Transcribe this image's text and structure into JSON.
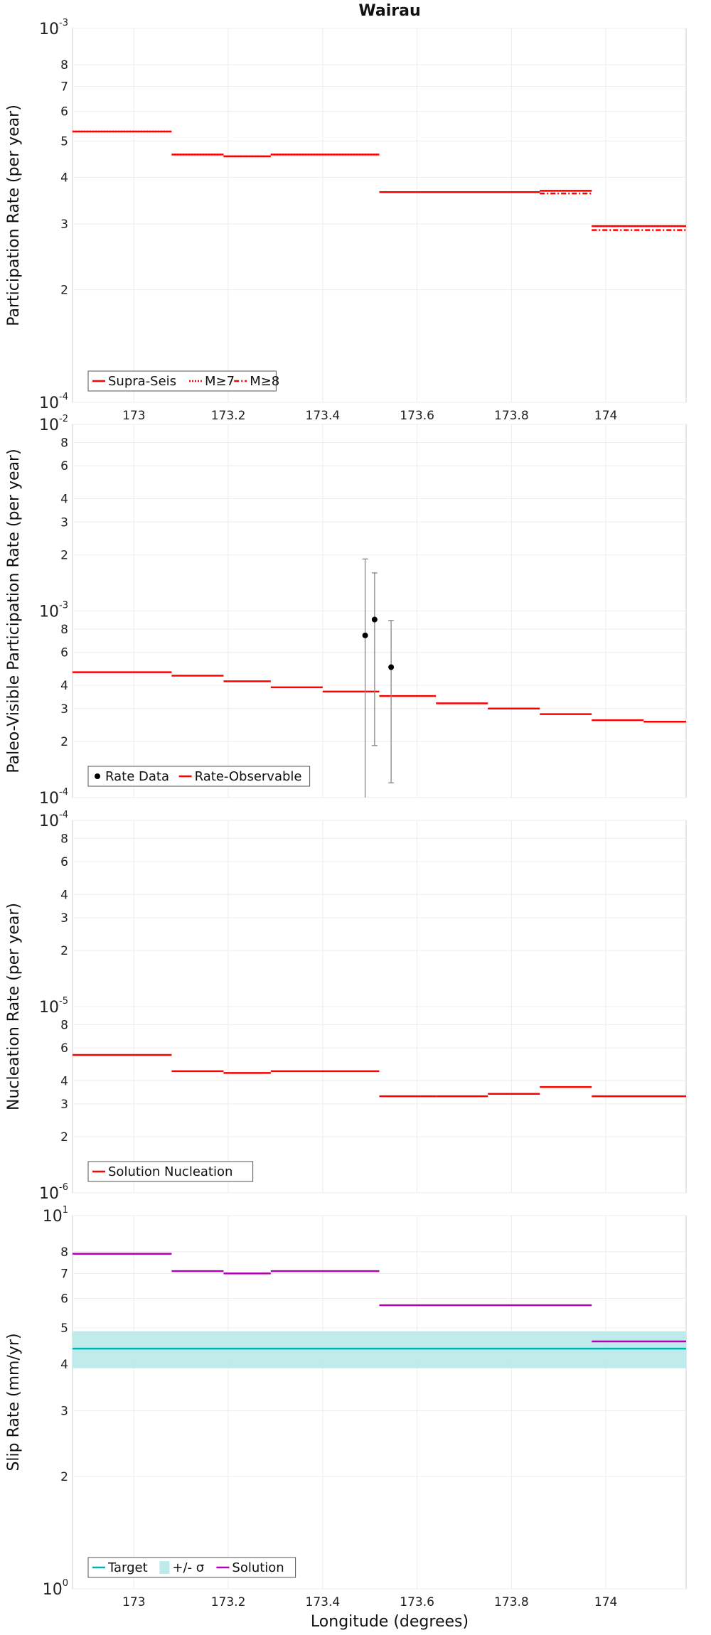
{
  "title": "Wairau",
  "xlabel": "Longitude (degrees)",
  "colors": {
    "red": "#ff0000",
    "black": "#000000",
    "gray": "#888888",
    "cyan": "#00b3b3",
    "cyan_band": "#bdeaea",
    "magenta": "#b300b3"
  },
  "chart_data": [
    {
      "type": "line",
      "ylabel": "Participation Rate (per year)",
      "yscale": "log",
      "xlim": [
        172.87,
        174.17
      ],
      "ylim": [
        0.0001,
        0.001
      ],
      "xticks": [
        173,
        173.2,
        173.4,
        173.6,
        173.8,
        174
      ],
      "xtick_labels": [
        "173",
        "173.2",
        "173.4",
        "173.6",
        "173.8",
        "174"
      ],
      "yticks": [
        {
          "v": 0.001,
          "b": "10",
          "e": "-3"
        },
        {
          "v": 0.0008,
          "t": "8"
        },
        {
          "v": 0.0007,
          "t": "7"
        },
        {
          "v": 0.0006,
          "t": "6"
        },
        {
          "v": 0.0005,
          "t": "5"
        },
        {
          "v": 0.0004,
          "t": "4"
        },
        {
          "v": 0.0003,
          "t": "3"
        },
        {
          "v": 0.0002,
          "t": "2"
        },
        {
          "v": 0.0001,
          "b": "10",
          "e": "-4"
        }
      ],
      "grid": true,
      "legend": {
        "placement": "bottom-left",
        "items": [
          {
            "label": "Supra-Seis",
            "style": "solid",
            "color": "#ff0000"
          },
          {
            "label": "M≥7",
            "style": "dotted",
            "color": "#ff0000"
          },
          {
            "label": "M≥8",
            "style": "dashdot",
            "color": "#ff0000"
          }
        ]
      },
      "series": [
        {
          "name": "Supra-Seis",
          "style": "solid",
          "color": "#ff0000",
          "segments": [
            [
              172.87,
              173.08,
              0.00053
            ],
            [
              173.08,
              173.19,
              0.00046
            ],
            [
              173.19,
              173.29,
              0.000455
            ],
            [
              173.29,
              173.52,
              0.00046
            ],
            [
              173.52,
              173.86,
              0.000365
            ],
            [
              173.86,
              173.97,
              0.000368
            ],
            [
              173.97,
              174.17,
              0.000296
            ]
          ]
        },
        {
          "name": "M≥7",
          "style": "dotted",
          "color": "#ff0000",
          "segments": [
            [
              172.87,
              173.08,
              0.00053
            ],
            [
              173.08,
              173.19,
              0.00046
            ],
            [
              173.19,
              173.29,
              0.000455
            ],
            [
              173.29,
              173.52,
              0.00046
            ],
            [
              173.52,
              173.86,
              0.000365
            ],
            [
              173.86,
              173.97,
              0.000368
            ],
            [
              173.97,
              174.17,
              0.000296
            ]
          ]
        },
        {
          "name": "M≥8",
          "style": "dashdot",
          "color": "#ff0000",
          "segments": [
            [
              173.86,
              173.97,
              0.000362
            ],
            [
              173.97,
              174.17,
              0.000289
            ]
          ]
        }
      ]
    },
    {
      "type": "line",
      "ylabel": "Paleo-Visible Participation Rate (per year)",
      "yscale": "log",
      "xlim": [
        172.87,
        174.17
      ],
      "ylim": [
        0.0001,
        0.01
      ],
      "xticks": [
        173,
        173.2,
        173.4,
        173.6,
        173.8,
        174
      ],
      "xtick_labels": [],
      "yticks": [
        {
          "v": 0.01,
          "b": "10",
          "e": "-2"
        },
        {
          "v": 0.008,
          "t": "8"
        },
        {
          "v": 0.006,
          "t": "6"
        },
        {
          "v": 0.004,
          "t": "4"
        },
        {
          "v": 0.003,
          "t": "3"
        },
        {
          "v": 0.002,
          "t": "2"
        },
        {
          "v": 0.001,
          "b": "10",
          "e": "-3"
        },
        {
          "v": 0.0008,
          "t": "8"
        },
        {
          "v": 0.0006,
          "t": "6"
        },
        {
          "v": 0.0004,
          "t": "4"
        },
        {
          "v": 0.0003,
          "t": "3"
        },
        {
          "v": 0.0002,
          "t": "2"
        },
        {
          "v": 0.0001,
          "b": "10",
          "e": "-4"
        }
      ],
      "grid": true,
      "legend": {
        "placement": "bottom-left",
        "items": [
          {
            "label": "Rate Data",
            "style": "marker",
            "color": "#000000"
          },
          {
            "label": "Rate-Observable",
            "style": "solid",
            "color": "#ff0000"
          }
        ]
      },
      "series": [
        {
          "name": "Rate-Observable",
          "style": "solid",
          "color": "#ff0000",
          "segments": [
            [
              172.87,
              173.08,
              0.00047
            ],
            [
              173.08,
              173.19,
              0.00045
            ],
            [
              173.19,
              173.29,
              0.00042
            ],
            [
              173.29,
              173.4,
              0.00039
            ],
            [
              173.4,
              173.52,
              0.00037
            ],
            [
              173.52,
              173.64,
              0.00035
            ],
            [
              173.64,
              173.75,
              0.00032
            ],
            [
              173.75,
              173.86,
              0.0003
            ],
            [
              173.86,
              173.97,
              0.00028
            ],
            [
              173.97,
              174.08,
              0.00026
            ],
            [
              174.08,
              174.17,
              0.000255
            ],
            [
              174.17,
              174.17,
              0.000252
            ]
          ]
        },
        {
          "name": "Rate Data",
          "style": "marker",
          "color": "#000000",
          "points": [
            {
              "x": 173.49,
              "y": 0.00074,
              "lo": 0.0001,
              "hi": 0.0019
            },
            {
              "x": 173.51,
              "y": 0.0009,
              "lo": 0.00019,
              "hi": 0.0016
            },
            {
              "x": 173.545,
              "y": 0.0005,
              "lo": 0.00012,
              "hi": 0.00089
            }
          ]
        }
      ]
    },
    {
      "type": "line",
      "ylabel": "Nucleation Rate (per year)",
      "yscale": "log",
      "xlim": [
        172.87,
        174.17
      ],
      "ylim": [
        1e-06,
        0.0001
      ],
      "xticks": [
        173,
        173.2,
        173.4,
        173.6,
        173.8,
        174
      ],
      "xtick_labels": [],
      "yticks": [
        {
          "v": 0.0001,
          "b": "10",
          "e": "-4"
        },
        {
          "v": 8e-05,
          "t": "8"
        },
        {
          "v": 6e-05,
          "t": "6"
        },
        {
          "v": 4e-05,
          "t": "4"
        },
        {
          "v": 3e-05,
          "t": "3"
        },
        {
          "v": 2e-05,
          "t": "2"
        },
        {
          "v": 1e-05,
          "b": "10",
          "e": "-5"
        },
        {
          "v": 8e-06,
          "t": "8"
        },
        {
          "v": 6e-06,
          "t": "6"
        },
        {
          "v": 4e-06,
          "t": "4"
        },
        {
          "v": 3e-06,
          "t": "3"
        },
        {
          "v": 2e-06,
          "t": "2"
        },
        {
          "v": 1e-06,
          "b": "10",
          "e": "-6"
        }
      ],
      "grid": true,
      "legend": {
        "placement": "bottom-left",
        "items": [
          {
            "label": "Solution Nucleation",
            "style": "solid",
            "color": "#ff0000"
          }
        ]
      },
      "series": [
        {
          "name": "Solution Nucleation",
          "style": "solid",
          "color": "#ff0000",
          "segments": [
            [
              172.87,
              173.08,
              5.5e-06
            ],
            [
              173.08,
              173.19,
              4.5e-06
            ],
            [
              173.19,
              173.29,
              4.4e-06
            ],
            [
              173.29,
              173.52,
              4.5e-06
            ],
            [
              173.52,
              173.64,
              3.3e-06
            ],
            [
              173.64,
              173.75,
              3.3e-06
            ],
            [
              173.75,
              173.86,
              3.4e-06
            ],
            [
              173.86,
              173.97,
              3.7e-06
            ],
            [
              173.97,
              174.17,
              3.3e-06
            ]
          ]
        }
      ]
    },
    {
      "type": "line",
      "ylabel": "Slip Rate (mm/yr)",
      "yscale": "log",
      "xlim": [
        172.87,
        174.17
      ],
      "ylim": [
        1,
        10
      ],
      "xticks": [
        173,
        173.2,
        173.4,
        173.6,
        173.8,
        174
      ],
      "xtick_labels": [
        "173",
        "173.2",
        "173.4",
        "173.6",
        "173.8",
        "174"
      ],
      "yticks": [
        {
          "v": 10,
          "b": "10",
          "e": "1"
        },
        {
          "v": 8,
          "t": "8"
        },
        {
          "v": 7,
          "t": "7"
        },
        {
          "v": 6,
          "t": "6"
        },
        {
          "v": 5,
          "t": "5"
        },
        {
          "v": 4,
          "t": "4"
        },
        {
          "v": 3,
          "t": "3"
        },
        {
          "v": 2,
          "t": "2"
        },
        {
          "v": 1,
          "b": "10",
          "e": "0"
        }
      ],
      "grid": true,
      "legend": {
        "placement": "bottom-left",
        "items": [
          {
            "label": "Target",
            "style": "solid",
            "color": "#00b3b3"
          },
          {
            "label": "+/- σ",
            "style": "band",
            "color": "#bdeaea"
          },
          {
            "label": "Solution",
            "style": "solid",
            "color": "#b300b3"
          }
        ]
      },
      "band": {
        "name": "+/- σ",
        "lo": 3.9,
        "hi": 4.9,
        "color": "#bdeaea"
      },
      "series": [
        {
          "name": "Target",
          "style": "solid",
          "color": "#00b3b3",
          "segments": [
            [
              172.87,
              174.17,
              4.4
            ]
          ]
        },
        {
          "name": "Solution",
          "style": "solid",
          "color": "#b300b3",
          "segments": [
            [
              172.87,
              173.08,
              7.9
            ],
            [
              173.08,
              173.19,
              7.1
            ],
            [
              173.19,
              173.29,
              7.0
            ],
            [
              173.29,
              173.52,
              7.1
            ],
            [
              173.52,
              173.97,
              5.75
            ],
            [
              173.97,
              174.17,
              4.6
            ]
          ]
        }
      ]
    }
  ]
}
